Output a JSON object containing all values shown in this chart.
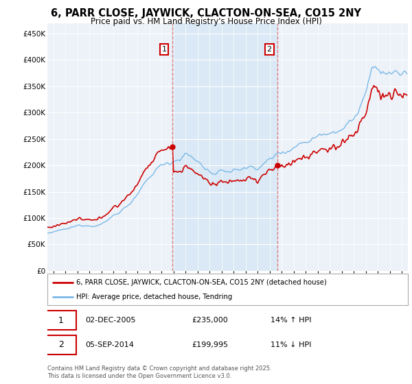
{
  "title": "6, PARR CLOSE, JAYWICK, CLACTON-ON-SEA, CO15 2NY",
  "subtitle": "Price paid vs. HM Land Registry's House Price Index (HPI)",
  "legend_line1": "6, PARR CLOSE, JAYWICK, CLACTON-ON-SEA, CO15 2NY (detached house)",
  "legend_line2": "HPI: Average price, detached house, Tendring",
  "annotation1_date": "02-DEC-2005",
  "annotation1_price": "£235,000",
  "annotation1_hpi": "14% ↑ HPI",
  "annotation2_date": "05-SEP-2014",
  "annotation2_price": "£199,995",
  "annotation2_hpi": "11% ↓ HPI",
  "footer": "Contains HM Land Registry data © Crown copyright and database right 2025.\nThis data is licensed under the Open Government Licence v3.0.",
  "sale1_year": 2005.92,
  "sale1_value": 235000,
  "sale2_year": 2014.67,
  "sale2_value": 199995,
  "hpi_color": "#7ab8e8",
  "price_color": "#cc0000",
  "background_color": "#ffffff",
  "plot_bg_color": "#edf2f8",
  "shade_color": "#d8e8f5",
  "ylim_min": 0,
  "ylim_max": 470000
}
